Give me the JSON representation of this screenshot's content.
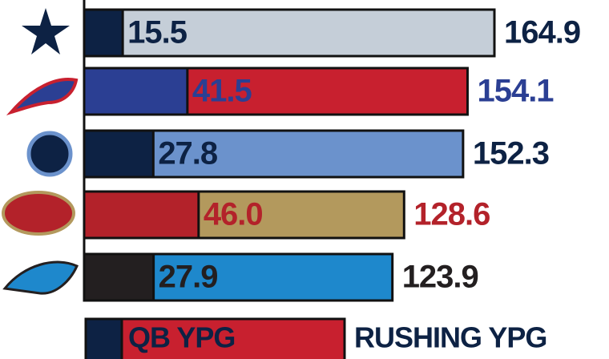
{
  "chart_data": {
    "type": "bar",
    "series": [
      {
        "name": "QB YPG",
        "color": "#c8202f",
        "values": [
          15.5,
          41.5,
          27.8,
          46.0,
          27.9
        ],
        "value_labels": [
          "15.5",
          "41.5",
          "27.8",
          "46.0",
          "27.9"
        ],
        "colors": [
          "#0d2244",
          "#2b3f93",
          "#0d2244",
          "#b3222a",
          "#231f20"
        ]
      },
      {
        "name": "RUSHING YPG",
        "color": "#0d2244",
        "values": [
          164.9,
          154.1,
          152.3,
          128.6,
          123.9
        ],
        "colors": [
          "#c5ced8",
          "#c8202f",
          "#6b92cc",
          "#b3995d",
          "#1e88cc"
        ],
        "label_colors": [
          "#0d2244",
          "#2b3f93",
          "#0d2244",
          "#b3222a",
          "#231f20"
        ]
      }
    ],
    "legend_swatch": "#0d2244"
  }
}
